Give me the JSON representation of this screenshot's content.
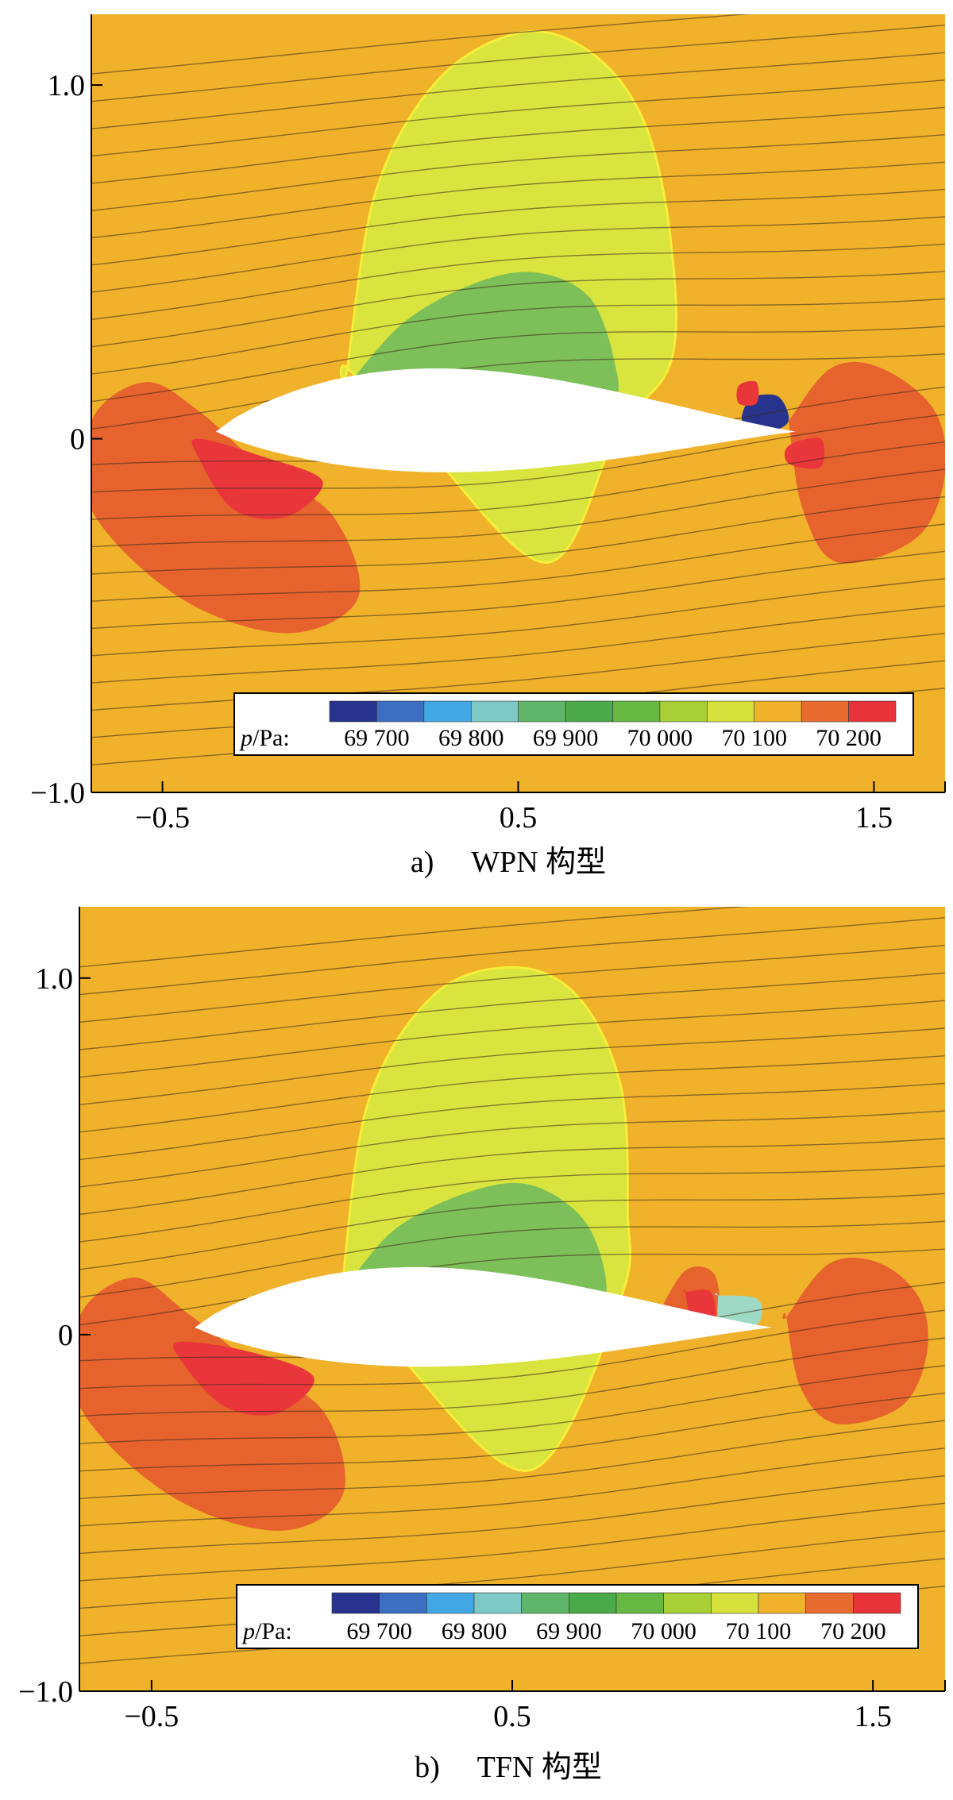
{
  "figure_captions": [
    "a)　 WPN 构型",
    "b)　 TFN 构型"
  ],
  "chart_data": [
    {
      "type": "heatmap",
      "subplot_label": "a)",
      "caption": "WPN 构型",
      "configuration": "WPN",
      "xlim": [
        -0.7,
        1.7
      ],
      "ylim": [
        -1.0,
        1.2
      ],
      "x_ticks": [
        -0.5,
        0.5,
        1.5
      ],
      "x_tick_labels": [
        "−0.5",
        "0.5",
        "1.5"
      ],
      "y_ticks": [
        -1.0,
        0,
        1.0
      ],
      "y_tick_labels": [
        "−1.0",
        "0",
        "1.0"
      ],
      "grid": false,
      "streamlines": true,
      "legend_placement": "bottom-right",
      "colorbar": {
        "label_var": "p",
        "label_unit": "/Pa:",
        "levels": [
          69650,
          69700,
          69750,
          69800,
          69850,
          69900,
          69950,
          70000,
          70050,
          70100,
          70150,
          70200,
          70250
        ],
        "colors": [
          "#27338c",
          "#3c6fc2",
          "#41a8e4",
          "#7dc9c5",
          "#5fb56a",
          "#4aa948",
          "#66b842",
          "#a9cf36",
          "#d6e23b",
          "#f0b22a",
          "#e86b2f",
          "#e8333a"
        ],
        "tick_values": [
          69700,
          69800,
          69900,
          70000,
          70100,
          70200
        ],
        "tick_labels": [
          "69 700",
          "69 800",
          "69 900",
          "70 000",
          "70 100",
          "70 200"
        ]
      },
      "background_value": 70120,
      "regions": [
        {
          "value": 70080,
          "color": "#d9e43e",
          "x": [
            0.02,
            0.1,
            0.28,
            0.52,
            0.72,
            0.86,
            0.93,
            0.93,
            0.78,
            0.58,
            0.22,
            0.02
          ],
          "y": [
            0.2,
            0.7,
            1.02,
            1.15,
            1.08,
            0.88,
            0.55,
            0.22,
            0.02,
            -0.35,
            0.0,
            0.2
          ]
        },
        {
          "value": 69950,
          "color": "#7dbf58",
          "x": [
            0.02,
            0.18,
            0.38,
            0.55,
            0.7,
            0.77,
            0.76,
            0.55,
            0.1,
            0.02
          ],
          "y": [
            0.15,
            0.33,
            0.44,
            0.47,
            0.4,
            0.22,
            0.1,
            0.05,
            0.05,
            0.15
          ]
        },
        {
          "value": 70170,
          "color": "#e6632d",
          "x": [
            -0.7,
            -0.55,
            -0.4,
            -0.22,
            -0.02,
            0.05,
            -0.15,
            -0.45,
            -0.7
          ],
          "y": [
            0.05,
            0.16,
            0.08,
            -0.08,
            -0.22,
            -0.45,
            -0.55,
            -0.45,
            -0.2
          ]
        },
        {
          "value": 70230,
          "color": "#e8363a",
          "x": [
            -0.4,
            -0.22,
            -0.05,
            -0.15,
            -0.3,
            -0.4
          ],
          "y": [
            0.0,
            -0.05,
            -0.12,
            -0.22,
            -0.2,
            -0.05
          ]
        },
        {
          "value": 70170,
          "color": "#e6632d",
          "x": [
            1.26,
            1.38,
            1.52,
            1.67,
            1.7,
            1.62,
            1.4,
            1.3,
            1.26
          ],
          "y": [
            0.05,
            0.2,
            0.2,
            0.08,
            -0.1,
            -0.28,
            -0.35,
            -0.2,
            0.05
          ]
        },
        {
          "value": 70230,
          "color": "#e8363a",
          "x": [
            1.26,
            1.35,
            1.35,
            1.26
          ],
          "y": [
            -0.02,
            0.0,
            -0.08,
            -0.07
          ]
        },
        {
          "value": 69660,
          "color": "#27338c",
          "x": [
            1.15,
            1.23,
            1.26,
            1.2,
            1.13,
            1.15
          ],
          "y": [
            0.12,
            0.12,
            0.05,
            0.02,
            0.05,
            0.12
          ]
        },
        {
          "value": 70230,
          "color": "#e8363a",
          "x": [
            1.12,
            1.17,
            1.17,
            1.12
          ],
          "y": [
            0.15,
            0.16,
            0.1,
            0.1
          ]
        }
      ],
      "airfoil": {
        "x_le": -0.35,
        "x_te": 1.28,
        "upper_thickness": 0.38,
        "lower_thickness": 0.23
      }
    },
    {
      "type": "heatmap",
      "subplot_label": "b)",
      "caption": "TFN 构型",
      "configuration": "TFN",
      "xlim": [
        -0.7,
        1.7
      ],
      "ylim": [
        -1.0,
        1.2
      ],
      "x_ticks": [
        -0.5,
        0.5,
        1.5
      ],
      "x_tick_labels": [
        "−0.5",
        "0.5",
        "1.5"
      ],
      "y_ticks": [
        -1.0,
        0,
        1.0
      ],
      "y_tick_labels": [
        "−1.0",
        "0",
        "1.0"
      ],
      "grid": false,
      "streamlines": true,
      "legend_placement": "bottom-right",
      "colorbar": {
        "label_var": "p",
        "label_unit": "/Pa:",
        "levels": [
          69650,
          69700,
          69750,
          69800,
          69850,
          69900,
          69950,
          70000,
          70050,
          70100,
          70150,
          70200,
          70250
        ],
        "colors": [
          "#27338c",
          "#3c6fc2",
          "#41a8e4",
          "#7dc9c5",
          "#5fb56a",
          "#4aa948",
          "#66b842",
          "#a9cf36",
          "#d6e23b",
          "#f0b22a",
          "#e86b2f",
          "#e8333a"
        ],
        "tick_values": [
          69700,
          69800,
          69900,
          70000,
          70100,
          70200
        ],
        "tick_labels": [
          "69 700",
          "69 800",
          "69 900",
          "70 000",
          "70 100",
          "70 200"
        ]
      },
      "background_value": 70120,
      "regions": [
        {
          "value": 70080,
          "color": "#d9e43e",
          "x": [
            0.03,
            0.1,
            0.28,
            0.5,
            0.68,
            0.8,
            0.82,
            0.8,
            0.55,
            0.18,
            0.03
          ],
          "y": [
            0.15,
            0.65,
            0.95,
            1.03,
            0.95,
            0.7,
            0.35,
            0.1,
            -0.38,
            -0.05,
            0.15
          ]
        },
        {
          "value": 69950,
          "color": "#7dbf58",
          "x": [
            0.05,
            0.18,
            0.38,
            0.55,
            0.7,
            0.76,
            0.72,
            0.5,
            0.1,
            0.05
          ],
          "y": [
            0.15,
            0.3,
            0.4,
            0.42,
            0.32,
            0.15,
            0.08,
            0.03,
            0.04,
            0.15
          ]
        },
        {
          "value": 70170,
          "color": "#e6632d",
          "x": [
            -0.7,
            -0.55,
            -0.4,
            -0.22,
            -0.02,
            0.03,
            -0.15,
            -0.45,
            -0.7
          ],
          "y": [
            0.05,
            0.16,
            0.06,
            -0.08,
            -0.22,
            -0.45,
            -0.55,
            -0.45,
            -0.2
          ]
        },
        {
          "value": 70230,
          "color": "#e8363a",
          "x": [
            -0.42,
            -0.22,
            -0.05,
            -0.15,
            -0.3,
            -0.42
          ],
          "y": [
            -0.02,
            -0.05,
            -0.12,
            -0.22,
            -0.2,
            -0.07
          ]
        },
        {
          "value": 70170,
          "color": "#e6632d",
          "x": [
            1.26,
            1.38,
            1.52,
            1.63,
            1.65,
            1.58,
            1.4,
            1.3,
            1.26
          ],
          "y": [
            0.05,
            0.2,
            0.2,
            0.1,
            -0.05,
            -0.2,
            -0.25,
            -0.15,
            0.05
          ]
        },
        {
          "value": 70170,
          "color": "#e6632d",
          "x": [
            0.9,
            0.98,
            1.06,
            1.07,
            1.0,
            0.92,
            0.9
          ],
          "y": [
            0.05,
            0.18,
            0.17,
            0.05,
            0.01,
            0.02,
            0.05
          ]
        },
        {
          "value": 70230,
          "color": "#e8363a",
          "x": [
            0.98,
            1.05,
            1.06,
            1.0,
            0.98
          ],
          "y": [
            0.12,
            0.12,
            0.04,
            0.03,
            0.12
          ]
        },
        {
          "value": 69800,
          "color": "#9dd9c5",
          "x": [
            1.07,
            1.18,
            1.18,
            1.08,
            1.07
          ],
          "y": [
            0.11,
            0.1,
            0.03,
            0.02,
            0.11
          ]
        }
      ],
      "airfoil": {
        "x_le": -0.38,
        "x_te": 1.22,
        "upper_thickness": 0.36,
        "lower_thickness": 0.22
      }
    }
  ]
}
